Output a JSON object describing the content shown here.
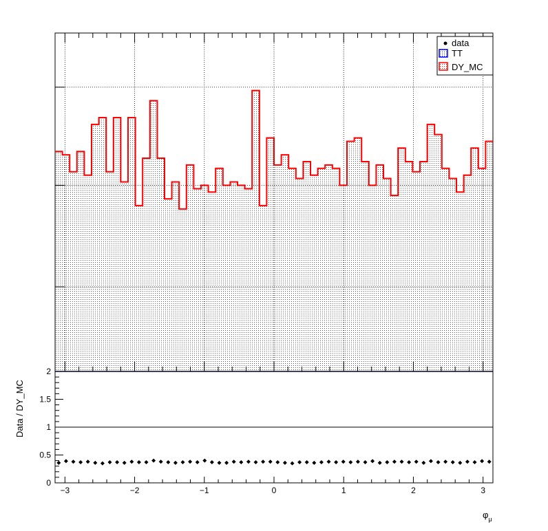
{
  "chart_data": [
    {
      "type": "step-histogram",
      "panel": "main",
      "x_range": [
        -3.1416,
        3.1416
      ],
      "n_bins": 60,
      "grid": true,
      "legend_position": "top-right",
      "legend": [
        {
          "name": "data",
          "marker": "dot",
          "color": "#000000"
        },
        {
          "name": "TT",
          "marker": "hatched-box",
          "color": "#0000ff"
        },
        {
          "name": "DY_MC",
          "marker": "hatched-box",
          "color": "#ff0000"
        }
      ],
      "ylim": [
        0,
        1
      ],
      "y_axis_labels_shown": false,
      "series": [
        {
          "name": "DY_MC",
          "color": "#ff0000",
          "values": [
            0.65,
            0.64,
            0.59,
            0.65,
            0.58,
            0.73,
            0.75,
            0.59,
            0.75,
            0.56,
            0.75,
            0.49,
            0.63,
            0.8,
            0.63,
            0.51,
            0.56,
            0.48,
            0.61,
            0.54,
            0.55,
            0.53,
            0.6,
            0.55,
            0.56,
            0.55,
            0.54,
            0.83,
            0.49,
            0.69,
            0.61,
            0.64,
            0.6,
            0.57,
            0.62,
            0.58,
            0.6,
            0.61,
            0.6,
            0.55,
            0.68,
            0.69,
            0.62,
            0.55,
            0.61,
            0.57,
            0.52,
            0.66,
            0.62,
            0.59,
            0.62,
            0.73,
            0.7,
            0.6,
            0.57,
            0.53,
            0.58,
            0.66,
            0.6,
            0.68
          ]
        }
      ]
    },
    {
      "type": "scatter",
      "panel": "ratio",
      "x_range": [
        -3.1416,
        3.1416
      ],
      "ylabel": "Data / DY_MC",
      "xlabel": "φ_μ",
      "xlabel_main": "φ",
      "xlabel_sub": "μ",
      "ylim": [
        0,
        2
      ],
      "reference_line": 1,
      "x_ticks": [
        -3,
        -2,
        -1,
        0,
        1,
        2,
        3
      ],
      "x_tick_labels": [
        "−3",
        "−2",
        "−1",
        "0",
        "1",
        "2",
        "3"
      ],
      "y_ticks": [
        0,
        0.5,
        1,
        1.5,
        2
      ],
      "y_tick_labels": [
        "0",
        "0.5",
        "1",
        "1.5",
        "2"
      ],
      "series": [
        {
          "name": "data",
          "color": "#000000",
          "values": [
            0.36,
            0.39,
            0.38,
            0.37,
            0.38,
            0.36,
            0.35,
            0.37,
            0.37,
            0.36,
            0.38,
            0.37,
            0.37,
            0.4,
            0.38,
            0.37,
            0.36,
            0.37,
            0.38,
            0.37,
            0.4,
            0.37,
            0.36,
            0.36,
            0.38,
            0.37,
            0.38,
            0.37,
            0.38,
            0.38,
            0.37,
            0.36,
            0.35,
            0.37,
            0.37,
            0.36,
            0.37,
            0.38,
            0.37,
            0.38,
            0.37,
            0.38,
            0.37,
            0.39,
            0.36,
            0.37,
            0.38,
            0.38,
            0.37,
            0.38,
            0.36,
            0.39,
            0.37,
            0.38,
            0.37,
            0.36,
            0.38,
            0.37,
            0.39,
            0.38
          ]
        }
      ]
    }
  ]
}
